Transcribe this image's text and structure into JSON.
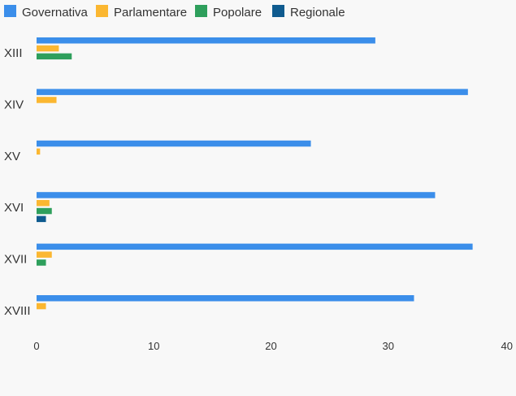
{
  "colors": {
    "background": "#f8f8f8",
    "text": "#333333"
  },
  "chart_data": {
    "type": "bar",
    "orientation": "horizontal",
    "title": "",
    "xlabel": "",
    "ylabel": "",
    "categories": [
      "XIII",
      "XIV",
      "XV",
      "XVI",
      "XVII",
      "XVIII"
    ],
    "series": [
      {
        "name": "Governativa",
        "color": "#3b8eea",
        "values": [
          28.9,
          36.8,
          23.4,
          34.0,
          37.2,
          32.2
        ]
      },
      {
        "name": "Parlamentare",
        "color": "#fbb731",
        "values": [
          1.9,
          1.7,
          0.3,
          1.1,
          1.3,
          0.8
        ]
      },
      {
        "name": "Popolare",
        "color": "#2e9f5c",
        "values": [
          3.0,
          0,
          0,
          1.3,
          0.8,
          0
        ]
      },
      {
        "name": "Regionale",
        "color": "#0f5b8f",
        "values": [
          0,
          0,
          0,
          0.8,
          0,
          0
        ]
      }
    ],
    "xlim": [
      0,
      40
    ],
    "xticks": [
      0,
      10,
      20,
      30,
      40
    ],
    "grid": false,
    "legend_position": "top-left"
  }
}
